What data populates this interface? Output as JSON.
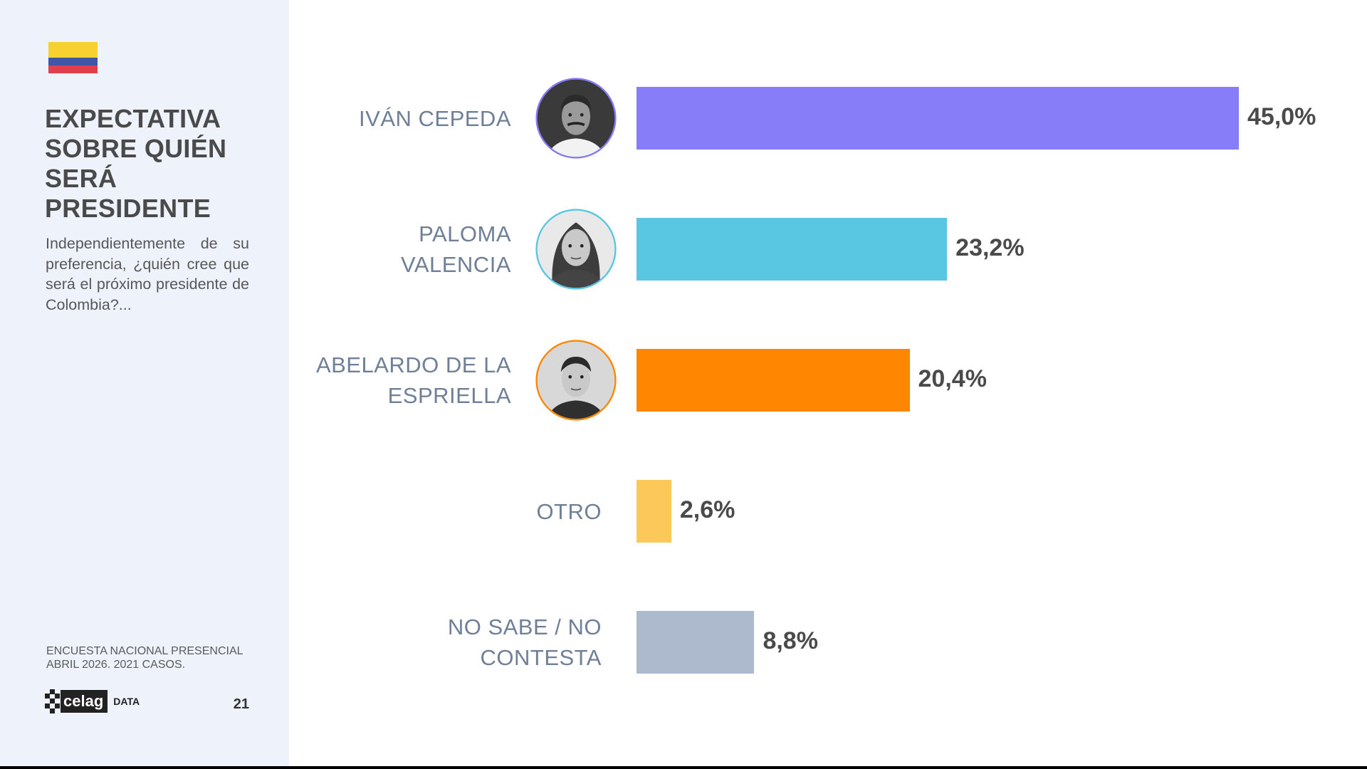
{
  "sidebar": {
    "title": "EXPECTATIVA\nSOBRE QUIÉN\nSERÁ PRESIDENTE",
    "question": "Independientemente de su preferencia, ¿quién cree que será el próximo presidente de Colombia?...",
    "footnote": "ENCUESTA NACIONAL PRESENCIAL\nABRIL 2026. 2021 CASOS.",
    "logo_word": "celag",
    "logo_tag": "DATA",
    "page_number": "21"
  },
  "colors": {
    "flag": [
      "#f6d130",
      "#3f57a6",
      "#df3f4f"
    ]
  },
  "chart_data": {
    "type": "bar",
    "orientation": "horizontal",
    "categories": [
      "IVÁN CEPEDA",
      "PALOMA\nVALENCIA",
      "ABELARDO DE LA\nESPRIELLA",
      "OTRO",
      "NO SABE / NO\nCONTESTA"
    ],
    "values": [
      45.0,
      23.2,
      20.4,
      2.6,
      8.8
    ],
    "value_labels": [
      "45,0%",
      "23,2%",
      "20,4%",
      "2,6%",
      "8,8%"
    ],
    "colors": [
      "#877df8",
      "#59c6e2",
      "#ff8601",
      "#fdc85a",
      "#adb9cc"
    ],
    "has_photo": [
      true,
      true,
      true,
      false,
      false
    ],
    "avatar_icons": [
      "portrait-ivan-cepeda",
      "portrait-paloma-valencia",
      "portrait-abelardo-de-la-espriella"
    ],
    "xlim": [
      0,
      45.0
    ],
    "grid": false,
    "legend": "none"
  }
}
